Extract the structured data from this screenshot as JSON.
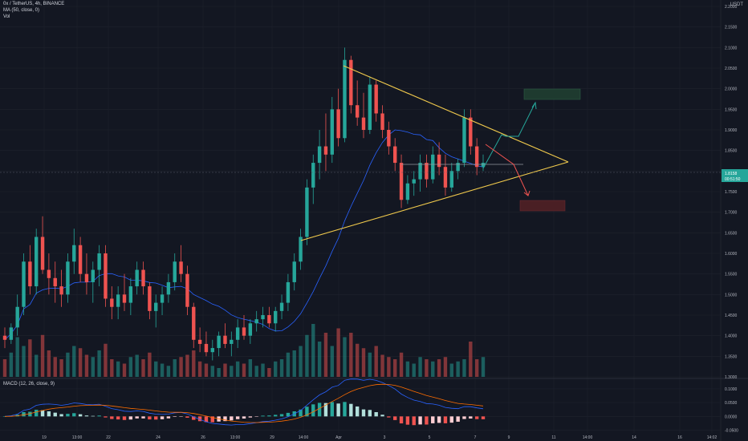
{
  "header": {
    "symbol_line": "0x / TetherUS, 4h, BINANCE",
    "ma_line": "MA (50, close, 0)",
    "vol_line": "Vol"
  },
  "currency": "USDT",
  "macd_label": "MACD (12, 26, close, 9)",
  "price_tag": {
    "value": "1.8158",
    "countdown": "00:51:50"
  },
  "colors": {
    "background": "#131722",
    "up": "#26a69a",
    "down": "#ef5350",
    "ma": "#2962ff",
    "triangle": "#f0c94c",
    "arrow_up": "#26a69a",
    "arrow_down": "#ef5350",
    "target_up": "#1e3a2f",
    "target_down": "#4a1f24"
  },
  "chart_data": [
    {
      "type": "candlestick",
      "title": "0x / TetherUS, 4h, BINANCE",
      "y_ticks": [
        "2.2000",
        "2.1500",
        "2.1000",
        "2.0500",
        "2.0000",
        "1.9500",
        "1.9000",
        "1.8500",
        "1.8000",
        "1.7500",
        "1.7000",
        "1.6500",
        "1.6000",
        "1.5500",
        "1.5000",
        "1.4500",
        "1.4000",
        "1.3500",
        "1.3000"
      ],
      "x_ticks": [
        "19",
        "13:00",
        "22",
        "24",
        "26",
        "13:00",
        "29",
        "14:00",
        "Apr",
        "3",
        "5",
        "7",
        "9",
        "11",
        "14:00",
        "14",
        "16",
        "14:02"
      ],
      "ylim": [
        1.3,
        2.2
      ],
      "series": [
        {
          "name": "Price",
          "type": "candlestick",
          "values": [
            [
              1.4,
              1.42,
              1.37,
              1.39
            ],
            [
              1.39,
              1.43,
              1.38,
              1.42
            ],
            [
              1.42,
              1.5,
              1.4,
              1.47
            ],
            [
              1.47,
              1.6,
              1.45,
              1.58
            ],
            [
              1.58,
              1.62,
              1.5,
              1.52
            ],
            [
              1.52,
              1.66,
              1.5,
              1.64
            ],
            [
              1.64,
              1.69,
              1.55,
              1.56
            ],
            [
              1.56,
              1.6,
              1.5,
              1.54
            ],
            [
              1.54,
              1.58,
              1.48,
              1.52
            ],
            [
              1.52,
              1.56,
              1.47,
              1.5
            ],
            [
              1.5,
              1.6,
              1.48,
              1.58
            ],
            [
              1.58,
              1.66,
              1.55,
              1.62
            ],
            [
              1.62,
              1.64,
              1.53,
              1.55
            ],
            [
              1.55,
              1.6,
              1.5,
              1.53
            ],
            [
              1.53,
              1.58,
              1.48,
              1.56
            ],
            [
              1.56,
              1.62,
              1.52,
              1.6
            ],
            [
              1.6,
              1.62,
              1.47,
              1.49
            ],
            [
              1.49,
              1.52,
              1.44,
              1.47
            ],
            [
              1.47,
              1.52,
              1.44,
              1.5
            ],
            [
              1.5,
              1.55,
              1.46,
              1.48
            ],
            [
              1.48,
              1.54,
              1.45,
              1.52
            ],
            [
              1.52,
              1.58,
              1.5,
              1.56
            ],
            [
              1.56,
              1.58,
              1.5,
              1.52
            ],
            [
              1.52,
              1.53,
              1.44,
              1.46
            ],
            [
              1.46,
              1.5,
              1.42,
              1.48
            ],
            [
              1.48,
              1.52,
              1.45,
              1.5
            ],
            [
              1.5,
              1.55,
              1.48,
              1.53
            ],
            [
              1.53,
              1.6,
              1.51,
              1.58
            ],
            [
              1.58,
              1.62,
              1.53,
              1.55
            ],
            [
              1.55,
              1.57,
              1.45,
              1.47
            ],
            [
              1.47,
              1.48,
              1.37,
              1.39
            ],
            [
              1.39,
              1.42,
              1.36,
              1.38
            ],
            [
              1.38,
              1.41,
              1.35,
              1.36
            ],
            [
              1.36,
              1.39,
              1.34,
              1.37
            ],
            [
              1.37,
              1.41,
              1.35,
              1.4
            ],
            [
              1.4,
              1.43,
              1.37,
              1.38
            ],
            [
              1.38,
              1.41,
              1.35,
              1.39
            ],
            [
              1.39,
              1.44,
              1.37,
              1.42
            ],
            [
              1.42,
              1.45,
              1.39,
              1.4
            ],
            [
              1.4,
              1.44,
              1.38,
              1.43
            ],
            [
              1.43,
              1.46,
              1.41,
              1.44
            ],
            [
              1.44,
              1.47,
              1.42,
              1.45
            ],
            [
              1.45,
              1.47,
              1.42,
              1.43
            ],
            [
              1.43,
              1.47,
              1.41,
              1.46
            ],
            [
              1.46,
              1.5,
              1.44,
              1.48
            ],
            [
              1.48,
              1.55,
              1.46,
              1.53
            ],
            [
              1.53,
              1.6,
              1.51,
              1.58
            ],
            [
              1.58,
              1.66,
              1.56,
              1.64
            ],
            [
              1.64,
              1.78,
              1.62,
              1.76
            ],
            [
              1.76,
              1.84,
              1.72,
              1.82
            ],
            [
              1.82,
              1.9,
              1.78,
              1.86
            ],
            [
              1.86,
              1.94,
              1.8,
              1.84
            ],
            [
              1.84,
              1.98,
              1.82,
              1.95
            ],
            [
              1.95,
              2.0,
              1.86,
              1.88
            ],
            [
              1.88,
              2.1,
              1.87,
              2.07
            ],
            [
              2.07,
              2.08,
              1.94,
              1.96
            ],
            [
              1.96,
              2.02,
              1.91,
              1.93
            ],
            [
              1.93,
              1.99,
              1.88,
              1.9
            ],
            [
              1.9,
              2.03,
              1.89,
              2.01
            ],
            [
              2.01,
              2.02,
              1.92,
              1.94
            ],
            [
              1.94,
              1.96,
              1.88,
              1.9
            ],
            [
              1.9,
              1.92,
              1.84,
              1.86
            ],
            [
              1.86,
              1.88,
              1.8,
              1.82
            ],
            [
              1.82,
              1.84,
              1.71,
              1.73
            ],
            [
              1.73,
              1.79,
              1.72,
              1.77
            ],
            [
              1.77,
              1.8,
              1.74,
              1.78
            ],
            [
              1.78,
              1.84,
              1.75,
              1.82
            ],
            [
              1.82,
              1.84,
              1.76,
              1.78
            ],
            [
              1.78,
              1.86,
              1.77,
              1.84
            ],
            [
              1.84,
              1.87,
              1.79,
              1.81
            ],
            [
              1.81,
              1.84,
              1.74,
              1.76
            ],
            [
              1.76,
              1.82,
              1.75,
              1.8
            ],
            [
              1.8,
              1.83,
              1.78,
              1.82
            ],
            [
              1.82,
              1.95,
              1.81,
              1.93
            ],
            [
              1.93,
              1.95,
              1.84,
              1.86
            ],
            [
              1.86,
              1.88,
              1.79,
              1.81
            ],
            [
              1.81,
              1.84,
              1.8,
              1.82
            ]
          ]
        },
        {
          "name": "MA (50, close, 0)",
          "type": "line"
        }
      ],
      "volume": [
        40,
        55,
        90,
        70,
        85,
        50,
        95,
        60,
        45,
        40,
        55,
        70,
        65,
        50,
        45,
        60,
        75,
        40,
        35,
        30,
        45,
        50,
        40,
        55,
        35,
        30,
        25,
        40,
        45,
        50,
        60,
        35,
        30,
        25,
        20,
        30,
        25,
        35,
        30,
        40,
        25,
        30,
        20,
        35,
        40,
        55,
        60,
        70,
        95,
        120,
        80,
        100,
        70,
        110,
        90,
        100,
        75,
        65,
        55,
        70,
        50,
        45,
        40,
        55,
        35,
        30,
        45,
        40,
        35,
        40,
        45,
        30,
        35,
        40,
        80,
        40,
        45
      ],
      "macd": {
        "label": "MACD (12, 26, close, 9)",
        "y_ticks": [
          "0.1000",
          "0.0500",
          "0.0000",
          "-0.0500"
        ],
        "ylim": [
          -0.06,
          0.12
        ]
      },
      "annotations": {
        "triangle_upper": [
          [
            2.065
          ],
          [
            1.835
          ]
        ],
        "triangle_lower": [
          [
            1.648
          ],
          [
            1.835
          ]
        ],
        "horizontal_level": 1.835,
        "current_price": 1.8158
      }
    }
  ]
}
